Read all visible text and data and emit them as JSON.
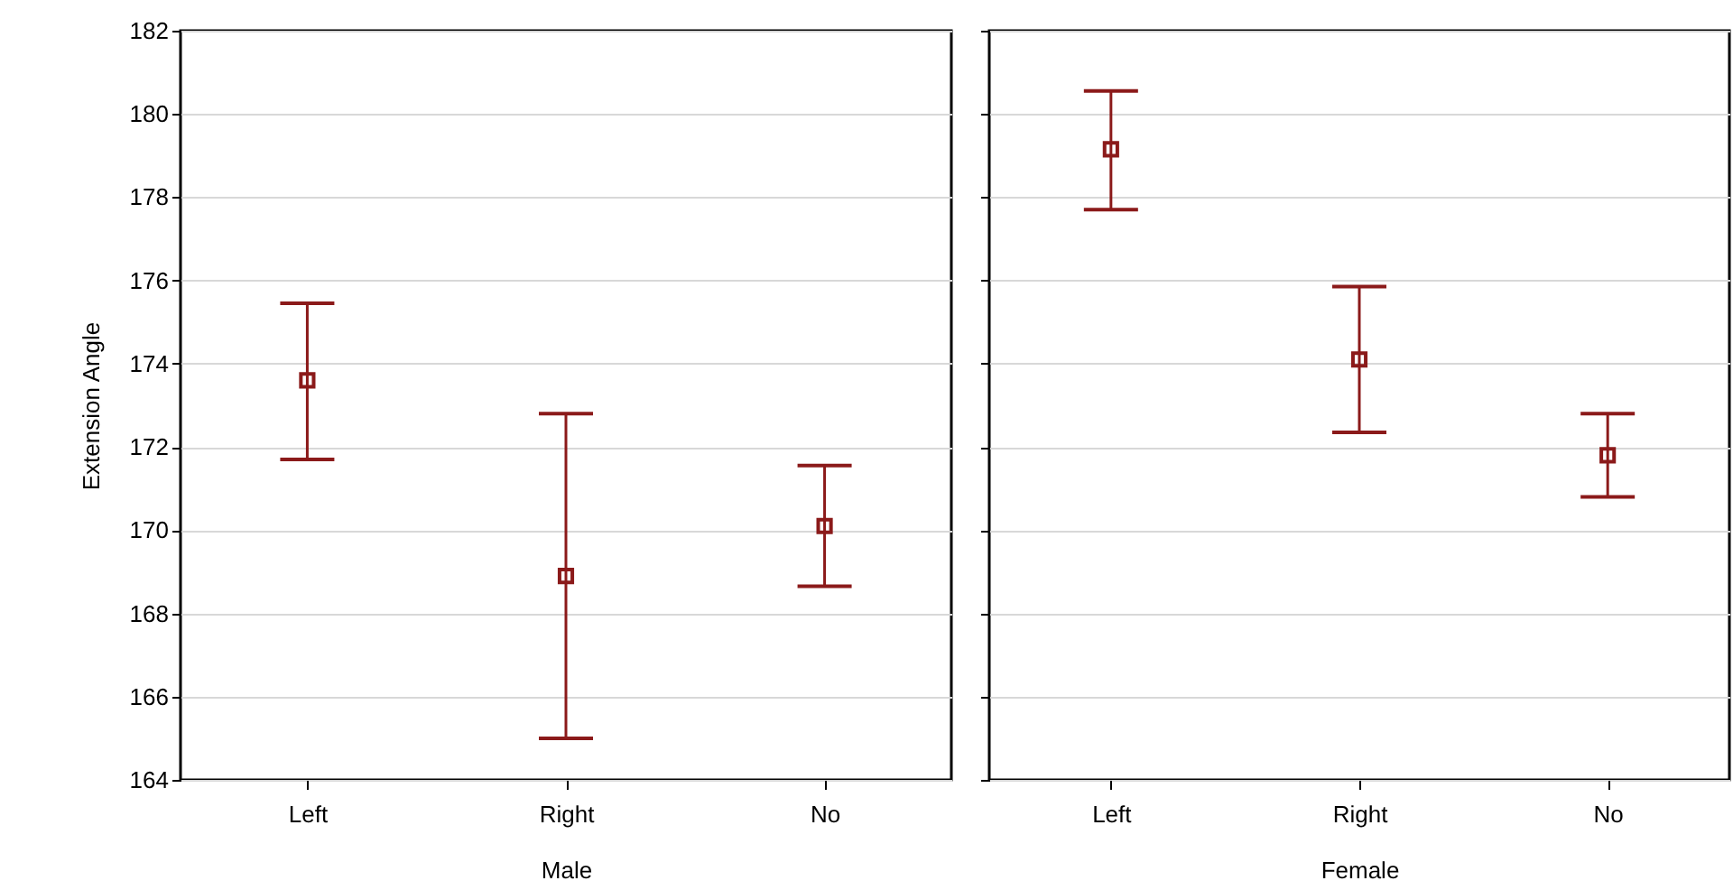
{
  "chart_data": [
    {
      "type": "scatter",
      "xlabel": "Male",
      "ylabel": "Extension Angle",
      "categories": [
        "Left",
        "Right",
        "No"
      ],
      "series": [
        {
          "color": "#8b1a1a",
          "values": [
            173.6,
            168.9,
            170.1
          ],
          "errors": [
            [
              171.7,
              175.45
            ],
            [
              165.0,
              172.8
            ],
            [
              168.65,
              171.55
            ]
          ]
        }
      ],
      "ylim": [
        164,
        182
      ],
      "yticks": [
        164,
        166,
        168,
        170,
        172,
        174,
        176,
        178,
        180,
        182
      ],
      "grid": "y",
      "marker": "square"
    },
    {
      "type": "scatter",
      "xlabel": "Female",
      "categories": [
        "Left",
        "Right",
        "No"
      ],
      "series": [
        {
          "color": "#8b1a1a",
          "values": [
            179.15,
            174.1,
            171.8
          ],
          "errors": [
            [
              177.7,
              180.55
            ],
            [
              172.35,
              175.85
            ],
            [
              170.8,
              172.8
            ]
          ]
        }
      ],
      "ylim": [
        164,
        182
      ],
      "yticks": [
        164,
        166,
        168,
        170,
        172,
        174,
        176,
        178,
        180,
        182
      ],
      "grid": "y",
      "marker": "square",
      "tick_labels": "x"
    }
  ]
}
